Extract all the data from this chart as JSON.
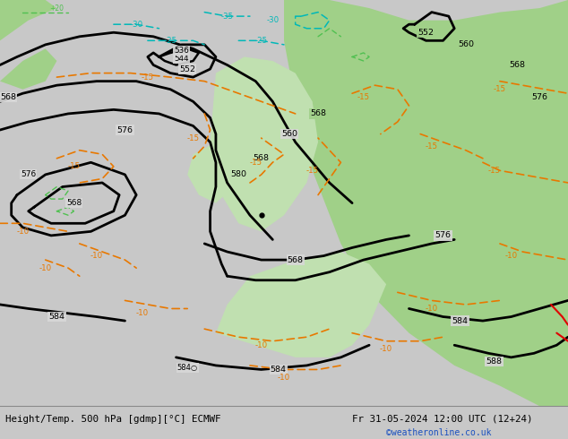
{
  "title_left": "Height/Temp. 500 hPa [gdmp][°C] ECMWF",
  "title_right": "Fr 31-05-2024 12:00 UTC (12+24)",
  "watermark": "©weatheronline.co.uk",
  "bg_color": "#c8c8c8",
  "ocean_color": "#d8d8d8",
  "green_dark": "#82be6e",
  "green_mid": "#a0d088",
  "green_light": "#c0e0b0",
  "black": "#000000",
  "orange": "#e87800",
  "cyan": "#00b8b8",
  "green_dashed": "#50c050",
  "red": "#e00000",
  "bottom_bg": "#e8e8e8",
  "figsize": [
    6.34,
    4.9
  ],
  "dpi": 100
}
